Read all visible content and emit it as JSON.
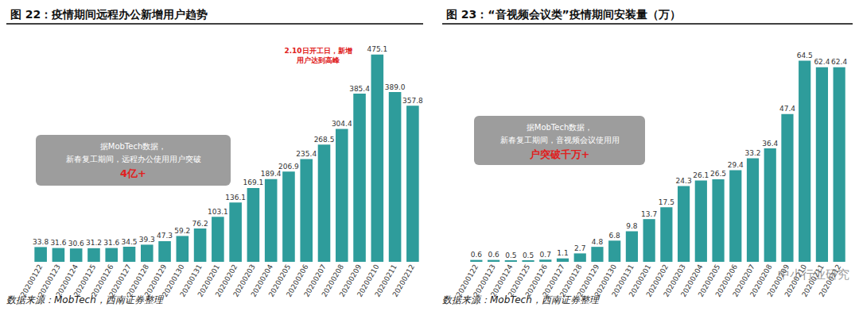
{
  "chart_data": [
    {
      "type": "bar",
      "title": "图 22：疫情期间远程办公新增用户趋势",
      "categories": [
        "20200122",
        "20200123",
        "20200124",
        "20200125",
        "20200126",
        "20200127",
        "20200128",
        "20200129",
        "20200130",
        "20200131",
        "20200201",
        "20200202",
        "20200203",
        "20200204",
        "20200205",
        "20200206",
        "20200207",
        "20200208",
        "20200209",
        "20200210",
        "20200211",
        "20200212"
      ],
      "values": [
        33.8,
        31.6,
        30.6,
        31.2,
        31.6,
        34.5,
        39.3,
        47.3,
        59.2,
        76.2,
        103.1,
        136.1,
        169.1,
        189.4,
        206.9,
        235.4,
        268.5,
        304.4,
        385.4,
        475.1,
        389.0,
        357.8
      ],
      "value_labels": [
        "33.8",
        "31.6",
        "30.6",
        "31.2",
        "31.6",
        "34.5",
        "39.3",
        "47.3",
        "59.2",
        "76.2",
        "103.1",
        "136.1",
        "169.1",
        "189.4",
        "206.9",
        "235.4",
        "268.5",
        "304.4",
        "385.4",
        "475.1",
        "389.0",
        "357.8"
      ],
      "color": "#2e9c9b",
      "ylim": [
        0,
        500
      ],
      "data_labels": true,
      "tick_labels": "x",
      "grid": false,
      "note": [
        "据MobTech数据，",
        "新春复工期间，远程办公使用用户突破",
        "4亿+"
      ],
      "highlight_note": "2.10日开工日，新增用户达到高峰",
      "source": "数据来源：MobTech，西南证券整理"
    },
    {
      "type": "bar",
      "title": "图 23：“音视频会议类”疫情期间安装量（万）",
      "categories": [
        "20200122",
        "20200123",
        "20200124",
        "20200125",
        "20200126",
        "20200127",
        "20200128",
        "20200129",
        "20200130",
        "20200131",
        "20200201",
        "20200202",
        "20200203",
        "20200204",
        "20200205",
        "20200206",
        "20200207",
        "20200208",
        "20200209",
        "20200210",
        "20200211",
        "20200212"
      ],
      "values": [
        0.6,
        0.6,
        0.5,
        0.5,
        0.7,
        1.1,
        2.7,
        4.8,
        6.8,
        9.8,
        13.7,
        17.5,
        24.3,
        26.1,
        26.5,
        29.4,
        33.2,
        36.4,
        47.4,
        64.5,
        62.4,
        62.4
      ],
      "value_labels": [
        "0.6",
        "0.6",
        "0.5",
        "0.5",
        "0.7",
        "1.1",
        "2.7",
        "4.8",
        "6.8",
        "9.8",
        "13.7",
        "17.5",
        "24.3",
        "26.1",
        "26.5",
        "29.4",
        "33.2",
        "36.4",
        "47.4",
        "64.5",
        "62.4",
        "62.4"
      ],
      "color": "#2e9c9b",
      "ylim": [
        0,
        70
      ],
      "data_labels": true,
      "tick_labels": "x",
      "grid": false,
      "note": [
        "据MobTech数据，",
        "新春复工期间，音视频会议使用用",
        "户突破千万+"
      ],
      "source": "数据来源：MobTech，西南证券整理",
      "watermark": "中小行业研究"
    }
  ]
}
